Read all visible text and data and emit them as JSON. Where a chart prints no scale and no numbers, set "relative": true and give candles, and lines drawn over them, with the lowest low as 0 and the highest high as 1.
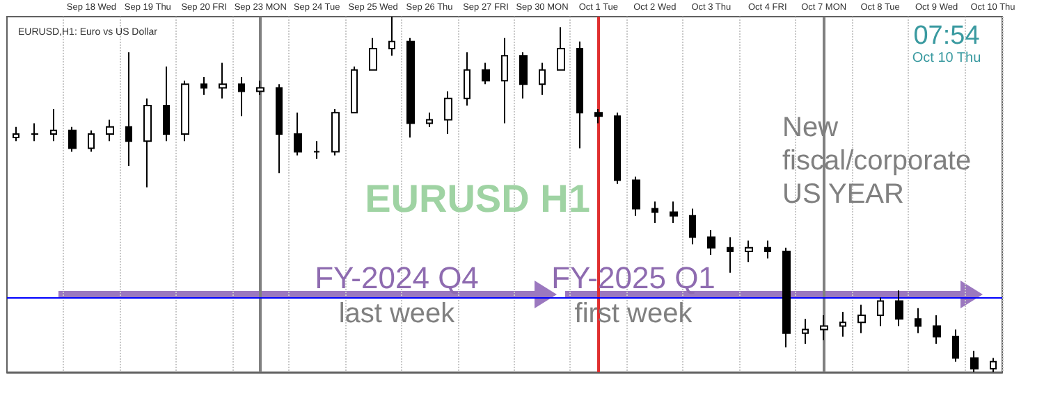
{
  "chart_data": {
    "type": "candlestick",
    "title": "EURUSD H1",
    "subtitle": "EURUSD,H1: Euro vs US Dollar",
    "categories": [
      null,
      null,
      null,
      null,
      "Sep 18 Wed",
      null,
      null,
      "Sep 19 Thu",
      null,
      null,
      "Sep 20 FRI",
      null,
      null,
      "Sep 23 MON",
      null,
      null,
      "Sep 24 Tue",
      null,
      null,
      "Sep 25 Wed",
      null,
      null,
      "Sep 26 Thu",
      null,
      null,
      "Sep 27 FRI",
      null,
      null,
      "Sep 30 MON",
      null,
      null,
      "Oct 1 Tue",
      null,
      null,
      "Oct 2 Wed",
      null,
      null,
      "Oct 3 Thu",
      null,
      null,
      "Oct 4 FRI",
      null,
      null,
      "Oct 7 MON",
      null,
      null,
      "Oct 8 Tue",
      null,
      null,
      "Oct 9 Wed",
      null,
      null,
      "Oct 10 Thu"
    ],
    "ohlc": [
      [
        0.66,
        0.69,
        0.65,
        0.67
      ],
      [
        0.67,
        0.7,
        0.65,
        0.67
      ],
      [
        0.67,
        0.74,
        0.65,
        0.68
      ],
      [
        0.68,
        0.69,
        0.62,
        0.63
      ],
      [
        0.63,
        0.68,
        0.62,
        0.67
      ],
      [
        0.67,
        0.71,
        0.65,
        0.69
      ],
      [
        0.69,
        0.9,
        0.58,
        0.65
      ],
      [
        0.65,
        0.77,
        0.52,
        0.75
      ],
      [
        0.75,
        0.86,
        0.65,
        0.67
      ],
      [
        0.67,
        0.82,
        0.65,
        0.81
      ],
      [
        0.81,
        0.83,
        0.78,
        0.8
      ],
      [
        0.8,
        0.87,
        0.77,
        0.81
      ],
      [
        0.81,
        0.83,
        0.72,
        0.79
      ],
      [
        0.79,
        0.82,
        0.78,
        0.8
      ],
      [
        0.8,
        0.81,
        0.56,
        0.67
      ],
      [
        0.67,
        0.73,
        0.61,
        0.62
      ],
      [
        0.62,
        0.65,
        0.6,
        0.62
      ],
      [
        0.62,
        0.74,
        0.61,
        0.73
      ],
      [
        0.73,
        0.86,
        0.73,
        0.85
      ],
      [
        0.85,
        0.94,
        0.85,
        0.91
      ],
      [
        0.91,
        1.0,
        0.89,
        0.93
      ],
      [
        0.93,
        0.94,
        0.66,
        0.7
      ],
      [
        0.7,
        0.73,
        0.69,
        0.71
      ],
      [
        0.71,
        0.79,
        0.67,
        0.77
      ],
      [
        0.77,
        0.9,
        0.75,
        0.85
      ],
      [
        0.85,
        0.87,
        0.81,
        0.82
      ],
      [
        0.82,
        0.94,
        0.7,
        0.89
      ],
      [
        0.89,
        0.9,
        0.77,
        0.81
      ],
      [
        0.81,
        0.87,
        0.78,
        0.85
      ],
      [
        0.85,
        0.97,
        0.85,
        0.91
      ],
      [
        0.91,
        0.93,
        0.63,
        0.73
      ],
      [
        0.73,
        0.74,
        0.7,
        0.72
      ],
      [
        0.72,
        0.73,
        0.53,
        0.54
      ],
      [
        0.54,
        0.55,
        0.44,
        0.46
      ],
      [
        0.46,
        0.48,
        0.42,
        0.45
      ],
      [
        0.45,
        0.48,
        0.42,
        0.44
      ],
      [
        0.44,
        0.46,
        0.36,
        0.38
      ],
      [
        0.38,
        0.4,
        0.33,
        0.35
      ],
      [
        0.35,
        0.38,
        0.28,
        0.34
      ],
      [
        0.34,
        0.37,
        0.31,
        0.35
      ],
      [
        0.35,
        0.37,
        0.32,
        0.34
      ],
      [
        0.34,
        0.35,
        0.07,
        0.11
      ],
      [
        0.11,
        0.15,
        0.08,
        0.12
      ],
      [
        0.12,
        0.16,
        0.09,
        0.13
      ],
      [
        0.13,
        0.17,
        0.1,
        0.14
      ],
      [
        0.14,
        0.19,
        0.11,
        0.16
      ],
      [
        0.16,
        0.21,
        0.13,
        0.2
      ],
      [
        0.2,
        0.23,
        0.13,
        0.15
      ],
      [
        0.15,
        0.18,
        0.11,
        0.13
      ],
      [
        0.13,
        0.16,
        0.08,
        0.1
      ],
      [
        0.1,
        0.12,
        0.03,
        0.04
      ],
      [
        0.04,
        0.06,
        0.0,
        0.01
      ],
      [
        0.01,
        0.04,
        0.0,
        0.03
      ]
    ],
    "color": "#000000",
    "relative": true,
    "grid": "x",
    "ref_lines": [
      {
        "axis": "x",
        "value": "Sep 23 MON",
        "color": "#808080"
      },
      {
        "axis": "x",
        "value": "Oct 1 Tue",
        "color": "#e03030"
      },
      {
        "axis": "x",
        "value": "Oct 7 MON",
        "color": "#808080"
      },
      {
        "axis": "y",
        "value": 0.21,
        "color": "#0000ff"
      }
    ],
    "annotations": [
      "FY-2024 Q4",
      "last week",
      "FY-2025 Q1",
      "first week",
      "New\nfiscal/corporate\nUS YEAR",
      "07:54",
      "Oct 10 Thu"
    ]
  }
}
